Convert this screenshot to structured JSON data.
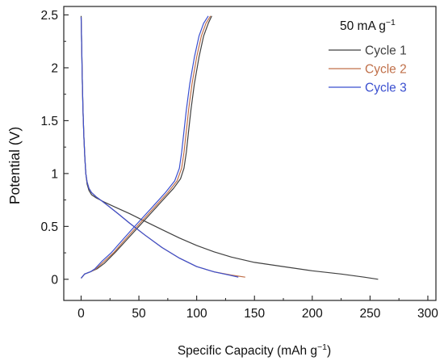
{
  "chart_data": {
    "type": "line",
    "title": "",
    "xlabel": "Specific Capacity (mAh g",
    "xlabel_sup": "−1",
    "xlabel_close": ")",
    "ylabel": "Potential (V)",
    "xlim": [
      -15,
      307
    ],
    "ylim": [
      -0.2,
      2.58
    ],
    "xticks": [
      0,
      50,
      100,
      150,
      200,
      250,
      300
    ],
    "yticks": [
      0,
      0.5,
      1,
      1.5,
      2,
      2.5
    ],
    "xtick_labels": [
      "0",
      "50",
      "100",
      "150",
      "200",
      "250",
      "300"
    ],
    "ytick_labels": [
      "0",
      "0.5",
      "1",
      "1.5",
      "2",
      "2.5"
    ],
    "grid": false,
    "legend": {
      "title": "50 mA g",
      "title_sup": "−1",
      "placement": "top-right"
    },
    "series": [
      {
        "name": "Cycle 1",
        "color": "#404040",
        "discharge": {
          "x": [
            0,
            0.5,
            1.0,
            1.6,
            2.4,
            3.2,
            4.1,
            5.2,
            6.8,
            9.0,
            13.0,
            20.0,
            30.0,
            42.0,
            55.0,
            70.0,
            85.0,
            100.0,
            115.0,
            130.0,
            150.0,
            175.0,
            200.0,
            225.0,
            245.0,
            257.0
          ],
          "y": [
            2.49,
            2.2,
            1.9,
            1.6,
            1.35,
            1.15,
            1.0,
            0.9,
            0.84,
            0.8,
            0.77,
            0.73,
            0.68,
            0.62,
            0.55,
            0.47,
            0.39,
            0.32,
            0.26,
            0.21,
            0.16,
            0.12,
            0.08,
            0.05,
            0.02,
            0.0
          ]
        },
        "charge": {
          "x": [
            0,
            3,
            8,
            14,
            20,
            30,
            40,
            50,
            60,
            70,
            80,
            86,
            89,
            91,
            93,
            95,
            98,
            102,
            106,
            110,
            113
          ],
          "y": [
            0.01,
            0.05,
            0.07,
            0.1,
            0.15,
            0.26,
            0.38,
            0.5,
            0.62,
            0.74,
            0.86,
            0.95,
            1.05,
            1.2,
            1.4,
            1.6,
            1.85,
            2.1,
            2.3,
            2.42,
            2.49
          ]
        }
      },
      {
        "name": "Cycle 2",
        "color": "#c0704a",
        "discharge": {
          "x": [
            0,
            0.5,
            1.0,
            1.6,
            2.4,
            3.2,
            4.1,
            5.2,
            6.8,
            9.0,
            13.0,
            18.0,
            24.0,
            32.0,
            42.0,
            55.0,
            70.0,
            85.0,
            100.0,
            115.0,
            130.0,
            142.0
          ],
          "y": [
            2.48,
            2.2,
            1.9,
            1.6,
            1.35,
            1.15,
            1.0,
            0.92,
            0.86,
            0.82,
            0.78,
            0.74,
            0.69,
            0.62,
            0.53,
            0.42,
            0.3,
            0.2,
            0.12,
            0.07,
            0.04,
            0.02
          ]
        },
        "charge": {
          "x": [
            0,
            3,
            8,
            13,
            20,
            28,
            36,
            45,
            55,
            65,
            75,
            83,
            87,
            89,
            91,
            93,
            96,
            100,
            104,
            108,
            112
          ],
          "y": [
            0.01,
            0.05,
            0.07,
            0.1,
            0.17,
            0.25,
            0.35,
            0.46,
            0.58,
            0.7,
            0.82,
            0.93,
            1.05,
            1.2,
            1.4,
            1.6,
            1.85,
            2.1,
            2.3,
            2.42,
            2.49
          ]
        }
      },
      {
        "name": "Cycle 3",
        "color": "#3a4fcf",
        "discharge": {
          "x": [
            0,
            0.5,
            1.0,
            1.6,
            2.4,
            3.2,
            4.1,
            5.2,
            6.8,
            9.0,
            13.0,
            18.0,
            24.0,
            32.0,
            42.0,
            55.0,
            70.0,
            85.0,
            100.0,
            115.0,
            128.0,
            136.0
          ],
          "y": [
            2.48,
            2.2,
            1.9,
            1.6,
            1.35,
            1.15,
            1.0,
            0.92,
            0.86,
            0.82,
            0.78,
            0.74,
            0.69,
            0.62,
            0.53,
            0.42,
            0.3,
            0.2,
            0.12,
            0.07,
            0.04,
            0.02
          ]
        },
        "charge": {
          "x": [
            0,
            3,
            8,
            12,
            18,
            26,
            34,
            43,
            53,
            63,
            73,
            81,
            85,
            87,
            89,
            91,
            94,
            98,
            102,
            106,
            110
          ],
          "y": [
            0.01,
            0.05,
            0.07,
            0.1,
            0.17,
            0.25,
            0.35,
            0.46,
            0.58,
            0.7,
            0.82,
            0.93,
            1.05,
            1.2,
            1.4,
            1.6,
            1.85,
            2.1,
            2.3,
            2.42,
            2.49
          ]
        }
      }
    ]
  }
}
